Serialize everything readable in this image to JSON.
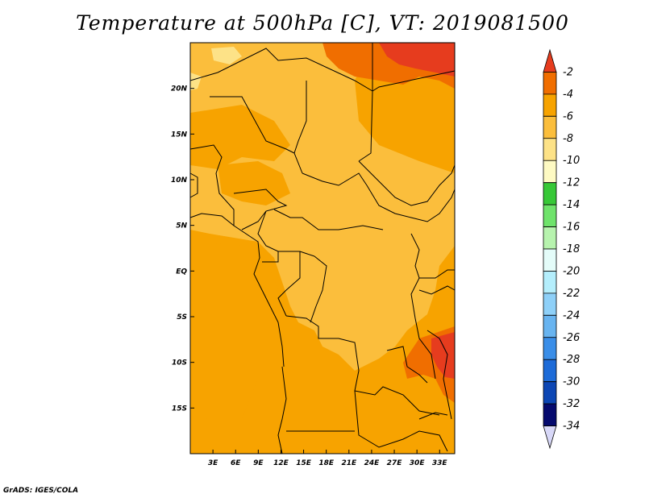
{
  "title": "Temperature at 500hPa [C], VT: 2019081500",
  "credit": "GrADS: IGES/COLA",
  "map": {
    "lon_range": [
      0,
      35
    ],
    "lat_range": [
      -20,
      25
    ],
    "x_ticks": [
      {
        "value": 3,
        "label": "3E"
      },
      {
        "value": 6,
        "label": "6E"
      },
      {
        "value": 9,
        "label": "9E"
      },
      {
        "value": 12,
        "label": "12E"
      },
      {
        "value": 15,
        "label": "15E"
      },
      {
        "value": 18,
        "label": "18E"
      },
      {
        "value": 21,
        "label": "21E"
      },
      {
        "value": 24,
        "label": "24E"
      },
      {
        "value": 27,
        "label": "27E"
      },
      {
        "value": 30,
        "label": "30E"
      },
      {
        "value": 33,
        "label": "33E"
      }
    ],
    "y_ticks": [
      {
        "value": 20,
        "label": "20N"
      },
      {
        "value": 15,
        "label": "15N"
      },
      {
        "value": 10,
        "label": "10N"
      },
      {
        "value": 5,
        "label": "5N"
      },
      {
        "value": 0,
        "label": "EQ"
      },
      {
        "value": -5,
        "label": "5S"
      },
      {
        "value": -10,
        "label": "10S"
      },
      {
        "value": -15,
        "label": "15S"
      }
    ]
  },
  "colorbar": {
    "labels": [
      "-2",
      "-4",
      "-6",
      "-8",
      "-10",
      "-12",
      "-14",
      "-16",
      "-18",
      "-20",
      "-22",
      "-24",
      "-26",
      "-28",
      "-30",
      "-32",
      "-34"
    ],
    "colors": [
      "#e63c1e",
      "#f06e00",
      "#f7a300",
      "#fbbe3c",
      "#fde287",
      "#fefac3",
      "#37c837",
      "#6fe36b",
      "#b7f3ae",
      "#e4fcf9",
      "#b4eefc",
      "#8ed0f8",
      "#68b4f0",
      "#3a8ee8",
      "#1d6bd8",
      "#0c46b4",
      "#050a6e",
      "#d8d8f8"
    ]
  }
}
